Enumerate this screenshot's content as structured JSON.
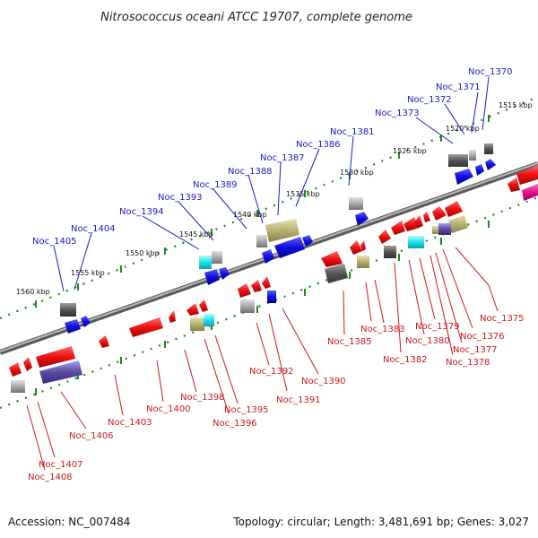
{
  "title": "Nitrosococcus oceani ATCC 19707, complete genome",
  "footer": {
    "accession": "Accession: NC_007484",
    "topology": "Topology: circular; Length: 3,481,691 bp; Genes: 3,027"
  },
  "colors": {
    "backbone": "#8a8a8a",
    "forward": "#1010e0",
    "reverse": "#ee1111",
    "gray": "#9a9a9a",
    "dark_gray": "#555555",
    "cyan": "#22e0e8",
    "olive": "#b8b070",
    "purple": "#6a5acd",
    "magenta": "#e0108a",
    "label_top": "#1a1acc",
    "label_bot": "#cc1a1a"
  },
  "scale_labels": [
    "1515 kbp",
    "1520 kbp",
    "1525 kbp",
    "1530 kbp",
    "1535 kbp",
    "1540 kbp",
    "1545 kbp",
    "1550 kbp",
    "1555 kbp",
    "1560 kbp"
  ],
  "top_genes": [
    "Noc_1370",
    "Noc_1371",
    "Noc_1372",
    "Noc_1373",
    "Noc_1381",
    "Noc_1386",
    "Noc_1387",
    "Noc_1388",
    "Noc_1389",
    "Noc_1393",
    "Noc_1394",
    "Noc_1404",
    "Noc_1405"
  ],
  "bottom_genes": [
    "Noc_1375",
    "Noc_1376",
    "Noc_1377",
    "Noc_1378",
    "Noc_1379",
    "Noc_1380",
    "Noc_1382",
    "Noc_1383",
    "Noc_1385",
    "Noc_1390",
    "Noc_1391",
    "Noc_1392",
    "Noc_1395",
    "Noc_1396",
    "Noc_1398",
    "Noc_1400",
    "Noc_1403",
    "Noc_1406",
    "Noc_1407",
    "Noc_1408"
  ]
}
